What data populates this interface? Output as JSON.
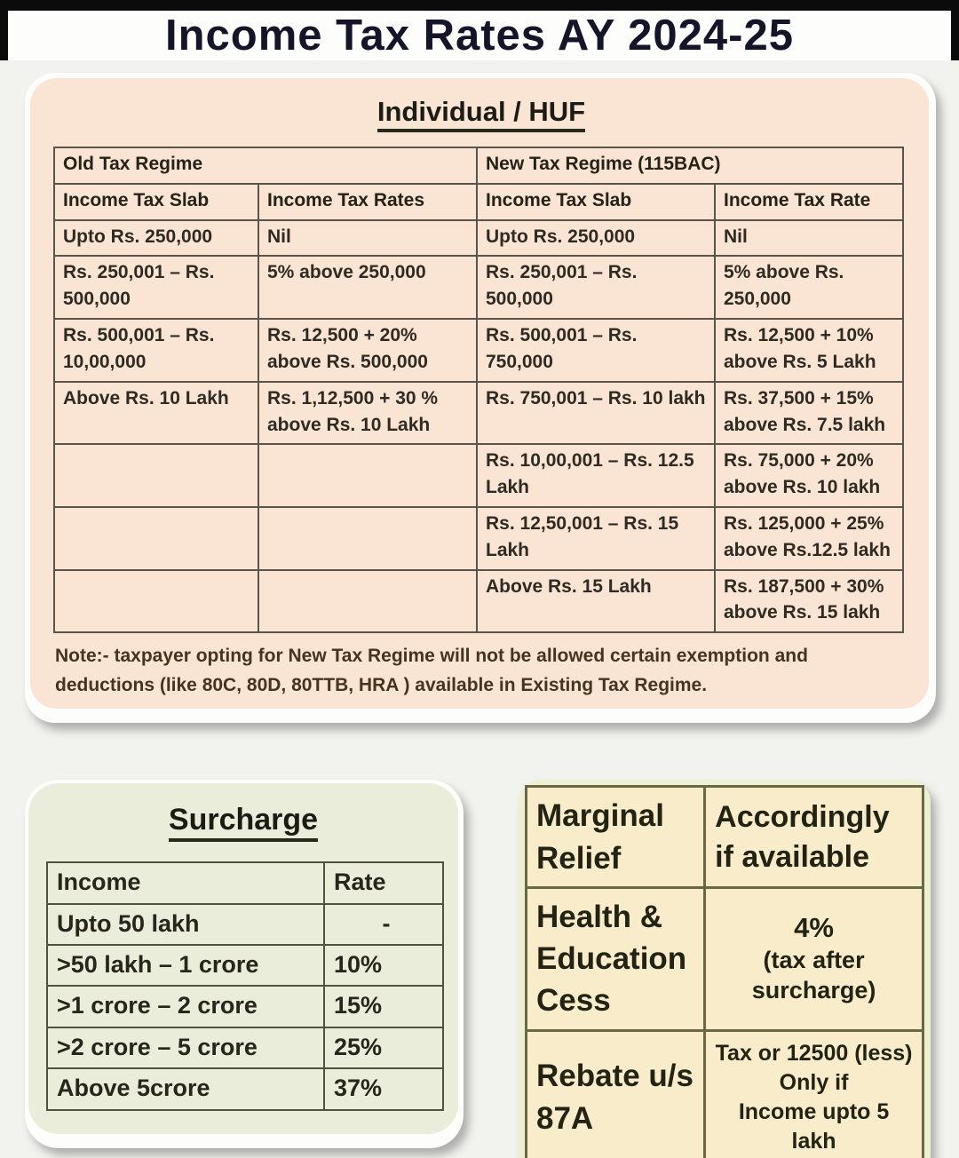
{
  "title": "Income Tax Rates AY 2024-25",
  "huf": {
    "heading": "Individual / HUF",
    "old_regime_header": "Old Tax Regime",
    "new_regime_header": "New Tax Regime (115BAC)",
    "col_headers": [
      "Income Tax Slab",
      "Income Tax Rates",
      "Income Tax Slab",
      "Income Tax Rate"
    ],
    "rows": [
      [
        "Upto Rs. 250,000",
        "Nil",
        "Upto Rs. 250,000",
        "Nil"
      ],
      [
        "Rs. 250,001 – Rs. 500,000",
        "5% above 250,000",
        "Rs. 250,001 – Rs. 500,000",
        "5% above Rs. 250,000"
      ],
      [
        "Rs. 500,001 – Rs. 10,00,000",
        "Rs. 12,500 + 20% above Rs. 500,000",
        "Rs. 500,001 – Rs. 750,000",
        "Rs. 12,500 + 10% above Rs. 5 Lakh"
      ],
      [
        "Above Rs. 10 Lakh",
        "Rs. 1,12,500 + 30 % above Rs. 10 Lakh",
        "Rs. 750,001 – Rs. 10 lakh",
        "Rs. 37,500 + 15% above Rs. 7.5 lakh"
      ],
      [
        "",
        "",
        "Rs. 10,00,001 – Rs. 12.5 Lakh",
        "Rs. 75,000 + 20% above Rs. 10 lakh"
      ],
      [
        "",
        "",
        "Rs. 12,50,001 – Rs. 15 Lakh",
        "Rs. 125,000 + 25% above Rs.12.5 lakh"
      ],
      [
        "",
        "",
        "Above Rs. 15 Lakh",
        "Rs. 187,500 + 30% above Rs. 15 lakh"
      ]
    ],
    "note": "Note:- taxpayer opting for New Tax Regime will not be allowed certain exemption and deductions (like 80C, 80D, 80TTB, HRA ) available in Existing Tax Regime."
  },
  "surcharge": {
    "heading": "Surcharge",
    "col_headers": [
      "Income",
      "Rate"
    ],
    "rows": [
      [
        "Upto 50 lakh",
        "-"
      ],
      [
        ">50 lakh – 1 crore",
        "10%"
      ],
      [
        ">1 crore – 2 crore",
        "15%"
      ],
      [
        ">2 crore – 5 crore",
        "25%"
      ],
      [
        "Above 5crore",
        "37%"
      ]
    ]
  },
  "misc": {
    "marginal_relief_label": "Marginal Relief",
    "marginal_relief_value": "Accordingly if available",
    "cess_label": "Health & Education Cess",
    "cess_value_main": "4%",
    "cess_value_sub": "(tax after surcharge)",
    "rebate_label": "Rebate u/s 87A",
    "rebate_value_lines": [
      "Tax or 12500 (less)",
      "Only if",
      "Income upto 5 lakh"
    ]
  },
  "colors": {
    "huf_panel": "#fae4d3",
    "surcharge_panel": "#e9edda",
    "misc_panel": "#f8ecca",
    "accent_strip": "#d9dc66",
    "frame": "#0b0b0b"
  }
}
